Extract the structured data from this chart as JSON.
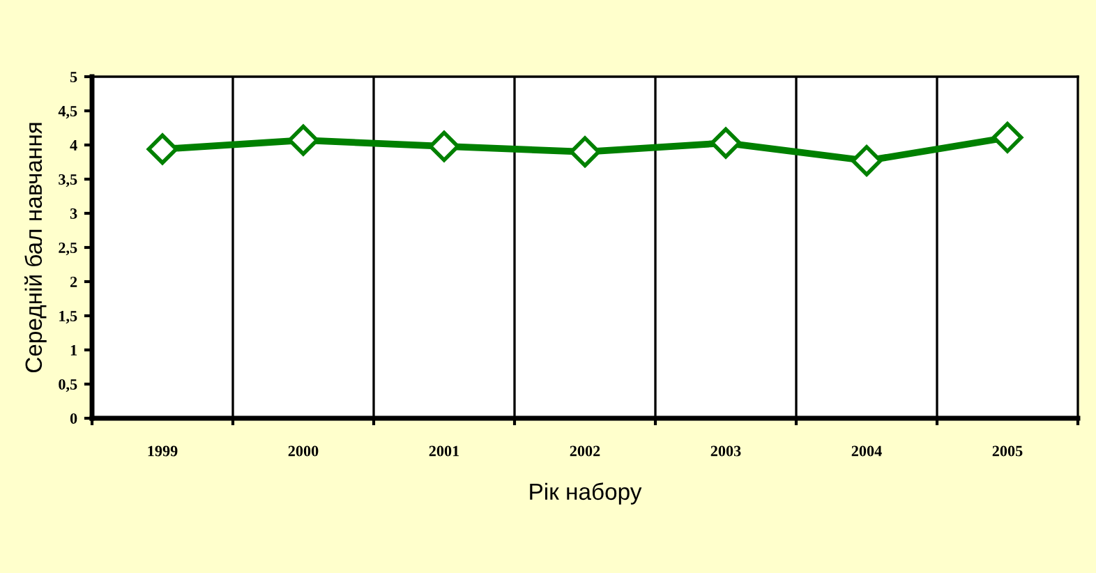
{
  "chart_data": {
    "type": "line",
    "xlabel": "Рік набору",
    "ylabel": "Середній бал навчання",
    "categories": [
      "1999",
      "2000",
      "2001",
      "2002",
      "2003",
      "2004",
      "2005"
    ],
    "series": [
      {
        "color": "#008000",
        "values": [
          3.94,
          4.07,
          3.98,
          3.9,
          4.03,
          3.77,
          4.11
        ]
      }
    ],
    "ylim": [
      0,
      5
    ],
    "yticks": [
      0,
      {
        "value": 0.5,
        "label": "0,5"
      },
      1,
      {
        "value": 1.5,
        "label": "1,5"
      },
      2,
      {
        "value": 2.5,
        "label": "2,5"
      },
      3,
      {
        "value": 3.5,
        "label": "3,5"
      },
      4,
      {
        "value": 4.5,
        "label": "4,5"
      },
      5
    ],
    "grid": "x",
    "marker": "diamond",
    "line_style": "solid",
    "legend": false
  }
}
